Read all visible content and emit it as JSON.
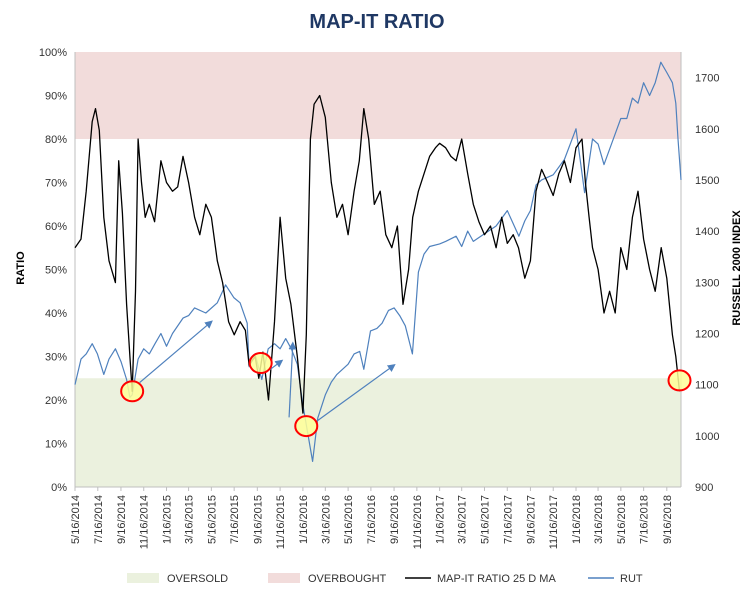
{
  "chart_data": {
    "type": "line",
    "title": "MAP-IT RATIO",
    "ylabel": "RATIO",
    "y2label": "RUSSELL 2000 INDEX",
    "ylim": [
      0,
      100
    ],
    "y2lim": [
      900,
      1750
    ],
    "grid": false,
    "legend_placement": "bottom",
    "x_ticks": [
      "5/16/2014",
      "7/16/2014",
      "9/16/2014",
      "11/16/2014",
      "1/16/2015",
      "3/16/2015",
      "5/16/2015",
      "7/16/2015",
      "9/16/2015",
      "11/16/2015",
      "1/16/2016",
      "3/16/2016",
      "5/16/2016",
      "7/16/2016",
      "9/16/2016",
      "11/16/2016",
      "1/16/2017",
      "3/16/2017",
      "5/16/2017",
      "7/16/2017",
      "9/16/2017",
      "11/16/2017",
      "1/16/2018",
      "3/16/2018",
      "5/16/2018",
      "7/16/2018",
      "9/16/2018"
    ],
    "y_ticks": [
      "0%",
      "10%",
      "20%",
      "30%",
      "40%",
      "50%",
      "60%",
      "70%",
      "80%",
      "90%",
      "100%"
    ],
    "y2_ticks": [
      "900",
      "1000",
      "1100",
      "1200",
      "1300",
      "1400",
      "1500",
      "1600",
      "1700"
    ],
    "bands": [
      {
        "name": "OVERSOLD",
        "from": 0,
        "to": 25,
        "color": "#ebf1de"
      },
      {
        "name": "OVERBOUGHT",
        "from": 80,
        "to": 100,
        "color": "#f2dcdb"
      }
    ],
    "colors": {
      "map_it": "#000000",
      "rut": "#4f81bd",
      "highlight_fill": "#ffff99",
      "highlight_stroke": "#ff0000",
      "arrow": "#4f81bd",
      "title": "#1f3864"
    },
    "series": [
      {
        "name": "MAP-IT RATIO 25 D MA",
        "axis": "left",
        "x": [
          "2014-05-16",
          "2014-06-01",
          "2014-06-15",
          "2014-07-01",
          "2014-07-10",
          "2014-07-20",
          "2014-08-01",
          "2014-08-15",
          "2014-09-01",
          "2014-09-10",
          "2014-09-20",
          "2014-10-01",
          "2014-10-10",
          "2014-10-16",
          "2014-10-25",
          "2014-11-01",
          "2014-11-10",
          "2014-11-20",
          "2014-12-01",
          "2014-12-15",
          "2015-01-01",
          "2015-01-16",
          "2015-02-01",
          "2015-02-15",
          "2015-03-01",
          "2015-03-16",
          "2015-04-01",
          "2015-04-15",
          "2015-05-01",
          "2015-05-16",
          "2015-06-01",
          "2015-06-15",
          "2015-07-01",
          "2015-07-16",
          "2015-08-01",
          "2015-08-15",
          "2015-08-25",
          "2015-09-10",
          "2015-09-20",
          "2015-10-01",
          "2015-10-16",
          "2015-11-01",
          "2015-11-16",
          "2015-12-01",
          "2015-12-15",
          "2016-01-01",
          "2016-01-16",
          "2016-01-25",
          "2016-02-05",
          "2016-02-15",
          "2016-03-01",
          "2016-03-16",
          "2016-04-01",
          "2016-04-16",
          "2016-05-01",
          "2016-05-16",
          "2016-06-01",
          "2016-06-15",
          "2016-06-27",
          "2016-07-10",
          "2016-07-25",
          "2016-08-10",
          "2016-08-25",
          "2016-09-10",
          "2016-09-25",
          "2016-10-10",
          "2016-10-25",
          "2016-11-05",
          "2016-11-20",
          "2016-12-05",
          "2016-12-20",
          "2017-01-05",
          "2017-01-16",
          "2017-02-01",
          "2017-02-15",
          "2017-03-01",
          "2017-03-16",
          "2017-04-01",
          "2017-04-16",
          "2017-05-01",
          "2017-05-16",
          "2017-06-01",
          "2017-06-16",
          "2017-07-01",
          "2017-07-16",
          "2017-08-01",
          "2017-08-15",
          "2017-09-01",
          "2017-09-16",
          "2017-10-01",
          "2017-10-16",
          "2017-11-01",
          "2017-11-16",
          "2017-12-01",
          "2017-12-16",
          "2018-01-01",
          "2018-01-16",
          "2018-02-01",
          "2018-02-10",
          "2018-02-20",
          "2018-03-01",
          "2018-03-16",
          "2018-04-01",
          "2018-04-16",
          "2018-05-01",
          "2018-05-16",
          "2018-06-01",
          "2018-06-16",
          "2018-07-01",
          "2018-07-16",
          "2018-08-01",
          "2018-08-16",
          "2018-09-01",
          "2018-09-16",
          "2018-10-01",
          "2018-10-10",
          "2018-10-20"
        ],
        "values": [
          55,
          57,
          68,
          84,
          87,
          82,
          62,
          52,
          47,
          75,
          63,
          42,
          30,
          22,
          45,
          80,
          70,
          62,
          65,
          61,
          75,
          70,
          68,
          69,
          76,
          70,
          62,
          58,
          65,
          62,
          52,
          47,
          38,
          35,
          38,
          36,
          28,
          30,
          25,
          31,
          20,
          38,
          62,
          48,
          42,
          30,
          17,
          35,
          80,
          88,
          90,
          85,
          70,
          62,
          65,
          58,
          68,
          75,
          87,
          80,
          65,
          68,
          58,
          55,
          60,
          42,
          50,
          62,
          68,
          72,
          76,
          78,
          79,
          78,
          76,
          75,
          80,
          72,
          65,
          61,
          58,
          60,
          55,
          62,
          56,
          58,
          55,
          48,
          52,
          68,
          73,
          70,
          67,
          72,
          75,
          70,
          78,
          80,
          70,
          62,
          55,
          50,
          40,
          45,
          40,
          55,
          50,
          62,
          68,
          57,
          50,
          45,
          55,
          48,
          35,
          30,
          22
        ]
      },
      {
        "name": "RUT",
        "axis": "right",
        "x": [
          "2014-05-16",
          "2014-06-01",
          "2014-06-15",
          "2014-07-01",
          "2014-07-15",
          "2014-08-01",
          "2014-08-15",
          "2014-09-01",
          "2014-09-16",
          "2014-10-01",
          "2014-10-10",
          "2014-10-16",
          "2014-11-01",
          "2014-11-16",
          "2014-12-01",
          "2014-12-16",
          "2015-01-01",
          "2015-01-16",
          "2015-02-01",
          "2015-03-01",
          "2015-03-16",
          "2015-04-01",
          "2015-05-01",
          "2015-06-01",
          "2015-06-23",
          "2015-07-15",
          "2015-08-01",
          "2015-08-20",
          "2015-08-25",
          "2015-09-10",
          "2015-09-28",
          "2015-10-15",
          "2015-11-01",
          "2015-11-16",
          "2015-12-01",
          "2015-12-16",
          "2016-01-01",
          "2016-01-16",
          "2016-02-11",
          "2016-02-25",
          "2016-03-16",
          "2016-04-01",
          "2016-04-16",
          "2016-05-01",
          "2016-05-16",
          "2016-06-01",
          "2016-06-16",
          "2016-06-27",
          "2016-07-15",
          "2016-08-01",
          "2016-08-15",
          "2016-09-01",
          "2016-09-16",
          "2016-10-01",
          "2016-10-16",
          "2016-11-04",
          "2016-11-20",
          "2016-12-05",
          "2016-12-20",
          "2017-01-16",
          "2017-02-01",
          "2017-03-01",
          "2017-03-16",
          "2017-04-01",
          "2017-04-16",
          "2017-05-16",
          "2017-06-16",
          "2017-07-16",
          "2017-08-16",
          "2017-09-01",
          "2017-09-16",
          "2017-10-01",
          "2017-10-16",
          "2017-11-16",
          "2017-12-16",
          "2018-01-16",
          "2018-02-08",
          "2018-03-01",
          "2018-03-16",
          "2018-04-01",
          "2018-04-16",
          "2018-05-16",
          "2018-06-01",
          "2018-06-16",
          "2018-07-01",
          "2018-07-16",
          "2018-08-01",
          "2018-08-16",
          "2018-08-31",
          "2018-09-16",
          "2018-10-01",
          "2018-10-10",
          "2018-10-16",
          "2018-10-24"
        ],
        "values": [
          1100,
          1150,
          1160,
          1180,
          1160,
          1120,
          1150,
          1170,
          1145,
          1110,
          1075,
          1080,
          1150,
          1170,
          1160,
          1180,
          1200,
          1175,
          1200,
          1230,
          1235,
          1250,
          1240,
          1260,
          1295,
          1270,
          1260,
          1220,
          1135,
          1160,
          1110,
          1170,
          1180,
          1170,
          1190,
          1170,
          1140,
          1060,
          950,
          1035,
          1080,
          1105,
          1120,
          1130,
          1140,
          1160,
          1165,
          1130,
          1205,
          1210,
          1220,
          1245,
          1250,
          1235,
          1215,
          1160,
          1320,
          1355,
          1370,
          1375,
          1380,
          1390,
          1370,
          1400,
          1380,
          1395,
          1410,
          1440,
          1390,
          1420,
          1440,
          1490,
          1500,
          1510,
          1540,
          1600,
          1475,
          1580,
          1570,
          1530,
          1560,
          1620,
          1620,
          1660,
          1650,
          1690,
          1665,
          1690,
          1730,
          1710,
          1690,
          1650,
          1580,
          1500
        ]
      }
    ],
    "annotations": [
      {
        "type": "circle",
        "x": "2014-10-16",
        "y": 22
      },
      {
        "type": "circle",
        "x": "2015-09-25",
        "y": 28.5
      },
      {
        "type": "circle",
        "x": "2016-01-25",
        "y": 14
      },
      {
        "type": "circle",
        "x": "2018-10-20",
        "y": 24.5
      },
      {
        "type": "arrow",
        "from": [
          "2014-11-05",
          24
        ],
        "to": [
          "2015-05-16",
          38
        ]
      },
      {
        "type": "arrow",
        "from": [
          "2015-10-20",
          27
        ],
        "to": [
          "2015-11-20",
          29
        ]
      },
      {
        "type": "arrow",
        "from": [
          "2015-12-10",
          16
        ],
        "to": [
          "2015-12-20",
          33
        ]
      },
      {
        "type": "arrow",
        "from": [
          "2016-02-20",
          15
        ],
        "to": [
          "2016-09-16",
          28
        ]
      }
    ]
  }
}
